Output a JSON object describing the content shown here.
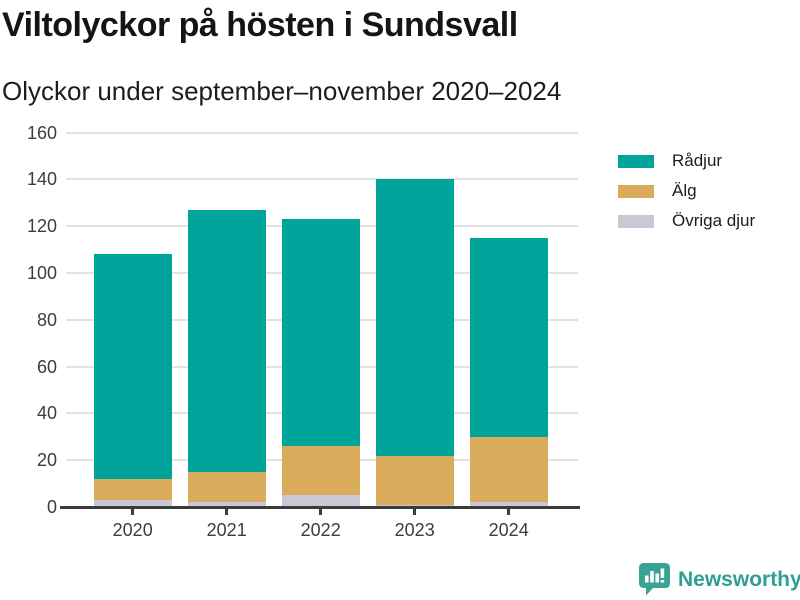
{
  "header": {
    "title": "Viltolyckor på hösten i Sundsvall",
    "subtitle": "Olyckor under september–november 2020–2024"
  },
  "footer": {
    "brand": "Newsworthy",
    "logo_icon": "bar-chart-speech-bubble"
  },
  "colors": {
    "radjur": "#00A49B",
    "alg": "#DBAB5C",
    "ovriga_djur": "#C9C8D4",
    "axis": "#3b3b3b",
    "gridline": "#e2e2e2",
    "brand_teal": "#2f9f93"
  },
  "chart_data": {
    "type": "bar",
    "stacked": true,
    "title": "Viltolyckor på hösten i Sundsvall",
    "subtitle": "Olyckor under september–november 2020–2024",
    "categories": [
      "2020",
      "2021",
      "2022",
      "2023",
      "2024"
    ],
    "series": [
      {
        "name": "Rådjur",
        "color": "#00A49B",
        "values": [
          96,
          112,
          97,
          118,
          85
        ]
      },
      {
        "name": "Älg",
        "color": "#DBAB5C",
        "values": [
          9,
          13,
          21,
          21,
          28
        ]
      },
      {
        "name": "Övriga djur",
        "color": "#C9C8D4",
        "values": [
          3,
          2,
          5,
          1,
          2
        ]
      }
    ],
    "stack_order_bottom_to_top": [
      "Övriga djur",
      "Älg",
      "Rådjur"
    ],
    "totals": [
      108,
      127,
      123,
      140,
      115
    ],
    "xlabel": "",
    "ylabel": "",
    "ylim": [
      0,
      160
    ],
    "yticks": [
      0,
      20,
      40,
      60,
      80,
      100,
      120,
      140,
      160
    ],
    "grid": "horizontal",
    "legend_position": "top-right"
  }
}
